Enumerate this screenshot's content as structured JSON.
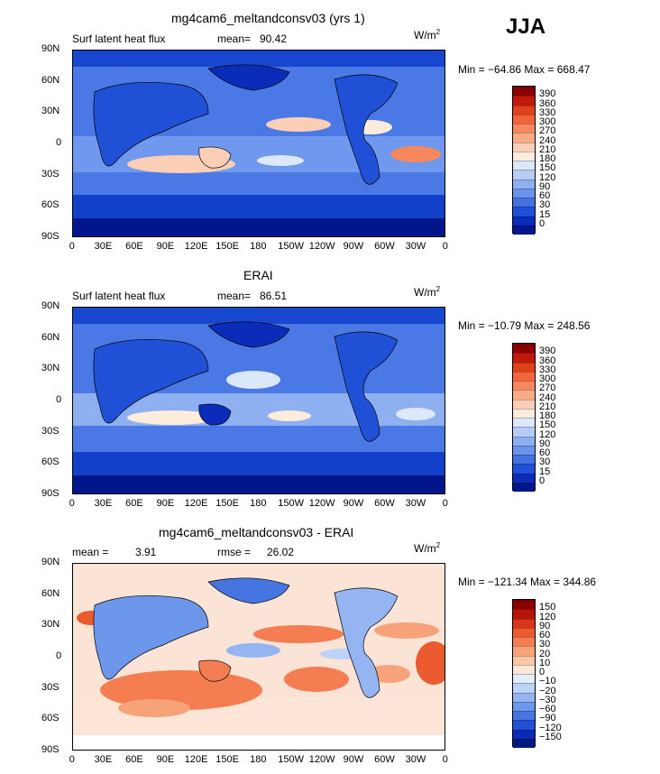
{
  "season": "JJA",
  "panels": [
    {
      "title": "mg4cam6_meltandconsv03 (yrs 1)",
      "variable": "Surf latent heat flux",
      "stat": "mean=",
      "stat_value": "90.42",
      "units": "W/m",
      "units_sup": "2",
      "minmax": "Min = −64.86 Max = 668.47",
      "colorbar_labels": [
        "390",
        "360",
        "330",
        "300",
        "270",
        "240",
        "210",
        "180",
        "150",
        "120",
        "90",
        "60",
        "30",
        "15",
        "0"
      ],
      "colorbar_colors": [
        "#8b0000",
        "#c01a0a",
        "#e0401a",
        "#f2653a",
        "#f7875c",
        "#f9ab86",
        "#fbcfb5",
        "#fdebdc",
        "#dce8fb",
        "#b7cdf6",
        "#8fb0f0",
        "#6a93ea",
        "#4472e0",
        "#2050d6",
        "#0a2cb8",
        "#03158a"
      ]
    },
    {
      "title": "ERAI",
      "variable": "Surf latent heat flux",
      "stat": "mean=",
      "stat_value": "86.51",
      "units": "W/m",
      "units_sup": "2",
      "minmax": "Min = −10.79 Max = 248.56",
      "colorbar_labels": [
        "390",
        "360",
        "330",
        "300",
        "270",
        "240",
        "210",
        "180",
        "150",
        "120",
        "90",
        "60",
        "30",
        "15",
        "0"
      ],
      "colorbar_colors": [
        "#8b0000",
        "#c01a0a",
        "#e0401a",
        "#f2653a",
        "#f7875c",
        "#f9ab86",
        "#fbcfb5",
        "#fdebdc",
        "#dce8fb",
        "#b7cdf6",
        "#8fb0f0",
        "#6a93ea",
        "#4472e0",
        "#2050d6",
        "#0a2cb8",
        "#03158a"
      ]
    },
    {
      "title": "mg4cam6_meltandconsv03 - ERAI",
      "variable": "mean =",
      "stat": "rmse =",
      "stat_value_a": "3.91",
      "stat_value": "26.02",
      "units": "W/m",
      "units_sup": "2",
      "minmax": "Min = −121.34 Max = 344.86",
      "colorbar_labels": [
        "150",
        "120",
        "90",
        "60",
        "30",
        "20",
        "10",
        "0",
        "−10",
        "−20",
        "−30",
        "−60",
        "−90",
        "−120",
        "−150"
      ],
      "colorbar_colors": [
        "#8b0000",
        "#b8140a",
        "#d8351a",
        "#ec5a2f",
        "#f47e52",
        "#f8a279",
        "#fac6a8",
        "#fde6d7",
        "#e4eefc",
        "#bcd2f7",
        "#94b5f1",
        "#6c97ea",
        "#4674e0",
        "#2150d4",
        "#0a2ab5",
        "#021680"
      ]
    }
  ],
  "lat_labels": [
    "90N",
    "60N",
    "30N",
    "0",
    "30S",
    "60S",
    "90S"
  ],
  "lon_labels": [
    "0",
    "30E",
    "60E",
    "90E",
    "120E",
    "150E",
    "180",
    "150W",
    "120W",
    "90W",
    "60W",
    "30W",
    "0"
  ]
}
